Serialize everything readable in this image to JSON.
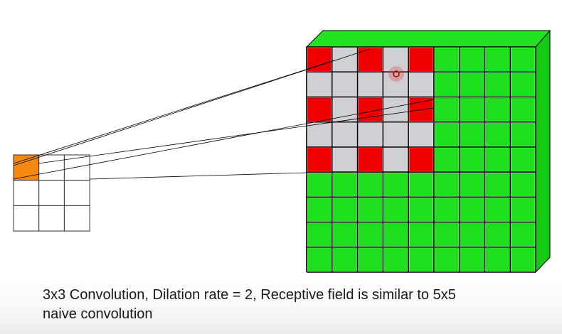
{
  "caption": {
    "line1": "3x3 Convolution, Dilation rate  = 2, Receptive field is similar to 5x5",
    "line2": "naive convolution"
  },
  "kernel": {
    "rows": 3,
    "cols": 3,
    "highlight_row": 0,
    "highlight_col": 0
  },
  "input_grid": {
    "rows": 9,
    "cols": 9
  },
  "receptive_field": {
    "size": 5,
    "dilation_rate": 2
  },
  "colors": {
    "kernel_highlight": "#f5890f",
    "grid_green": "#1ee01e",
    "grid_green_side": "#17c817",
    "grid_green_top": "#22e322",
    "sampled_cell": "#ee0000",
    "skipped_cell": "#cfcfd4",
    "line": "#000000",
    "cursor": "#e0201f"
  }
}
